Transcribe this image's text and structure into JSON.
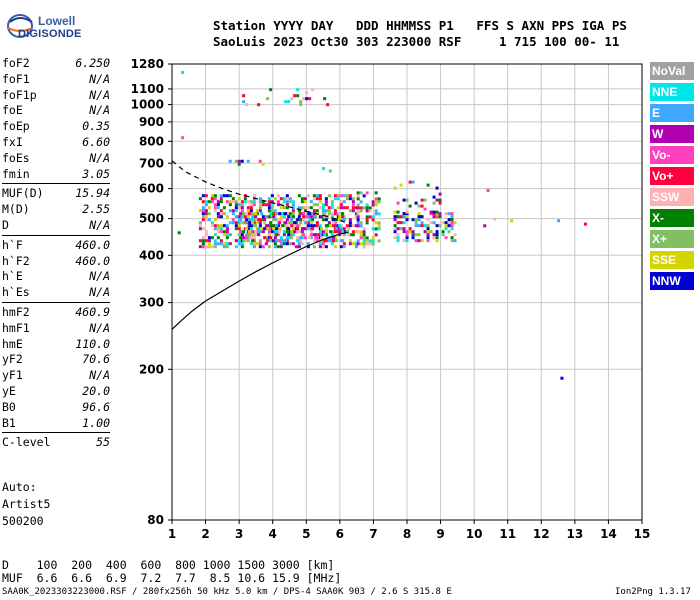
{
  "logo": {
    "line1": "Lowell",
    "line2": "DIGISONDE"
  },
  "header": {
    "line1": "Station YYYY DAY   DDD HHMMSS P1   FFS S AXN PPS IGA PS",
    "line2": "SaoLuis 2023 Oct30 303 223000 RSF     1 715 100 00- 11"
  },
  "params": [
    {
      "label": "foF2",
      "value": "6.250"
    },
    {
      "label": "foF1",
      "value": "N/A"
    },
    {
      "label": "foF1p",
      "value": "N/A"
    },
    {
      "label": "foE",
      "value": "N/A"
    },
    {
      "label": "foEp",
      "value": "0.35"
    },
    {
      "label": "fxI",
      "value": "6.60"
    },
    {
      "label": "foEs",
      "value": "N/A"
    },
    {
      "label": "fmin",
      "value": "3.05"
    },
    {
      "label": "MUF(D)",
      "value": "15.94"
    },
    {
      "label": "M(D)",
      "value": "2.55"
    },
    {
      "label": "D",
      "value": "N/A"
    },
    {
      "label": "h`F",
      "value": "460.0"
    },
    {
      "label": "h`F2",
      "value": "460.0"
    },
    {
      "label": "h`E",
      "value": "N/A"
    },
    {
      "label": "h`Es",
      "value": "N/A"
    },
    {
      "label": "hmF2",
      "value": "460.9"
    },
    {
      "label": "hmF1",
      "value": "N/A"
    },
    {
      "label": "hmE",
      "value": "110.0"
    },
    {
      "label": "yF2",
      "value": "70.6"
    },
    {
      "label": "yF1",
      "value": "N/A"
    },
    {
      "label": "yE",
      "value": "20.0"
    },
    {
      "label": "B0",
      "value": "96.6"
    },
    {
      "label": "B1",
      "value": "1.00"
    },
    {
      "label": "C-level",
      "value": "55"
    }
  ],
  "auto": {
    "line1": "Auto:",
    "line2": "Artist5",
    "line3": "500200"
  },
  "legend": [
    {
      "label": "NoVal",
      "color": "#a0a0a0"
    },
    {
      "label": "NNE",
      "color": "#00e6e6"
    },
    {
      "label": "E",
      "color": "#3ea9ff"
    },
    {
      "label": "W",
      "color": "#b000b0"
    },
    {
      "label": "Vo-",
      "color": "#ff40c0"
    },
    {
      "label": "Vo+",
      "color": "#ff0040"
    },
    {
      "label": "SSW",
      "color": "#ffb0b0"
    },
    {
      "label": "X-",
      "color": "#008000"
    },
    {
      "label": "X+",
      "color": "#80c060"
    },
    {
      "label": "SSE",
      "color": "#d4d400"
    },
    {
      "label": "NNW",
      "color": "#0000d0"
    }
  ],
  "muf_table": {
    "line1": "D    100  200  400  600  800 1000 1500 3000 [km]",
    "line2": "MUF  6.6  6.6  6.9  7.2  7.7  8.5 10.6 15.9 [MHz]"
  },
  "footer": {
    "left": "SAA0K_2023303223000.RSF / 280fx256h 50 kHz 5.0 km / DPS-4 SAA0K 903 / 2.6 S 315.8 E",
    "right": "Ion2Png 1.3.17"
  },
  "chart_data": {
    "type": "scatter",
    "xlim": [
      1,
      15
    ],
    "x_ticks": [
      1,
      2,
      3,
      4,
      5,
      6,
      7,
      8,
      9,
      10,
      11,
      12,
      13,
      14,
      15
    ],
    "y_scale": "log",
    "ylim": [
      80,
      1280
    ],
    "y_ticks": [
      80,
      200,
      300,
      400,
      500,
      600,
      700,
      800,
      900,
      1000,
      1100,
      1280
    ],
    "grid": true,
    "curves": [
      {
        "style": "solid",
        "x": [
          1.0,
          1.3,
          1.6,
          2.0,
          2.5,
          3.0,
          3.5,
          4.0,
          4.5,
          5.0,
          5.5,
          6.0,
          6.25
        ],
        "y": [
          255,
          270,
          285,
          303,
          322,
          342,
          362,
          382,
          402,
          422,
          440,
          455,
          460
        ]
      },
      {
        "style": "dashed",
        "x": [
          1.0,
          1.4,
          2.0,
          2.5,
          3.0,
          3.5,
          4.0,
          4.5,
          5.0,
          5.5,
          6.0,
          6.25
        ],
        "y": [
          710,
          665,
          625,
          600,
          580,
          565,
          550,
          537,
          523,
          510,
          495,
          485
        ]
      }
    ],
    "echo_regions": [
      {
        "x": [
          1.8,
          6.5
        ],
        "y": [
          420,
          580
        ],
        "density": 0.55
      },
      {
        "x": [
          3.0,
          6.3
        ],
        "y": [
          430,
          520
        ],
        "density": 0.35
      },
      {
        "x": [
          6.5,
          7.2
        ],
        "y": [
          420,
          590
        ],
        "density": 0.45
      },
      {
        "x": [
          7.6,
          9.5
        ],
        "y": [
          435,
          520
        ],
        "density": 0.5
      },
      {
        "x": [
          7.6,
          9.0
        ],
        "y": [
          520,
          630
        ],
        "density": 0.15
      },
      {
        "x": [
          3.0,
          5.7
        ],
        "y": [
          990,
          1105
        ],
        "density": 0.12
      },
      {
        "x": [
          2.6,
          3.8
        ],
        "y": [
          690,
          715
        ],
        "density": 0.25
      }
    ],
    "isolated_points": [
      {
        "x": 1.3,
        "y": 1220
      },
      {
        "x": 1.3,
        "y": 820
      },
      {
        "x": 1.2,
        "y": 460
      },
      {
        "x": 12.6,
        "y": 190
      },
      {
        "x": 10.3,
        "y": 480
      },
      {
        "x": 10.6,
        "y": 500
      },
      {
        "x": 11.1,
        "y": 495
      },
      {
        "x": 12.5,
        "y": 495
      },
      {
        "x": 13.3,
        "y": 485
      },
      {
        "x": 5.7,
        "y": 670
      },
      {
        "x": 5.5,
        "y": 680
      },
      {
        "x": 10.4,
        "y": 595
      }
    ]
  }
}
